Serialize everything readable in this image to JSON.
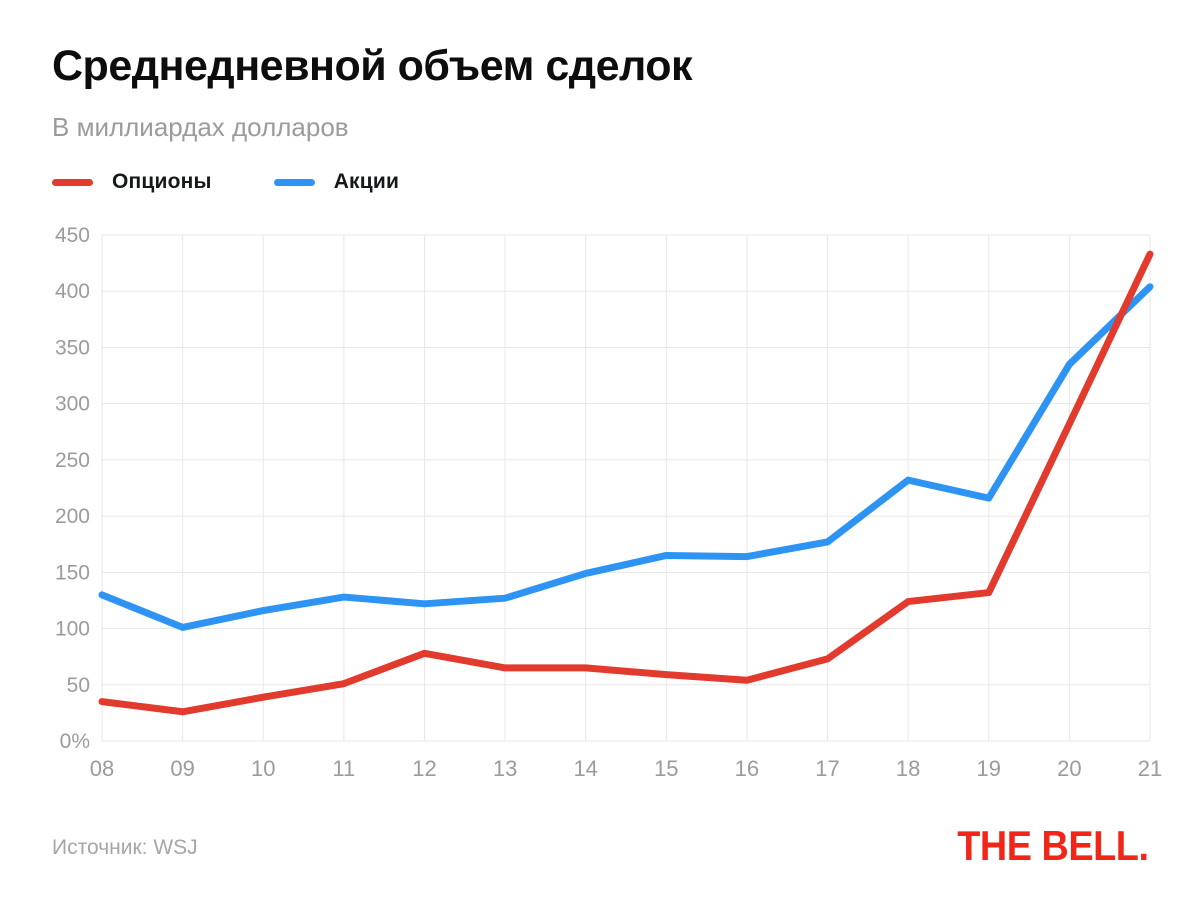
{
  "header": {
    "title": "Среднедневной объем сделок",
    "subtitle": "В миллиардах долларов"
  },
  "legend": {
    "options_label": "Опционы",
    "stocks_label": "Акции"
  },
  "footer": {
    "source": "Источник: WSJ",
    "logo": "THE BELL."
  },
  "colors": {
    "options_red": "#e23a2d",
    "stocks_blue": "#2d94f3",
    "grid": "#e7e7e7",
    "axis_text": "#9b9b9b",
    "logo_red": "#f22618"
  },
  "chart_data": {
    "type": "line",
    "title": "Среднедневной объем сделок",
    "units": "В миллиардах долларов",
    "source": "WSJ",
    "categories": [
      "08",
      "09",
      "10",
      "11",
      "12",
      "13",
      "14",
      "15",
      "16",
      "17",
      "18",
      "19",
      "20",
      "21"
    ],
    "series": [
      {
        "id": "options-line",
        "name": "Опционы",
        "color": "#e23a2d",
        "values": [
          35,
          26,
          39,
          51,
          78,
          65,
          65,
          59,
          54,
          73,
          124,
          132,
          282,
          433
        ]
      },
      {
        "id": "stocks-line",
        "name": "Акции",
        "color": "#2d94f3",
        "values": [
          130,
          101,
          116,
          128,
          122,
          127,
          149,
          165,
          164,
          177,
          232,
          216,
          335,
          404
        ]
      }
    ],
    "ylim": [
      0,
      450
    ],
    "yticks": [
      0,
      50,
      100,
      150,
      200,
      250,
      300,
      350,
      400,
      450
    ],
    "ytick_labels": [
      "0%",
      "50",
      "100",
      "150",
      "200",
      "250",
      "300",
      "350",
      "400",
      "450"
    ],
    "grid": true,
    "legend_position": "top-left",
    "line_width": 7
  }
}
